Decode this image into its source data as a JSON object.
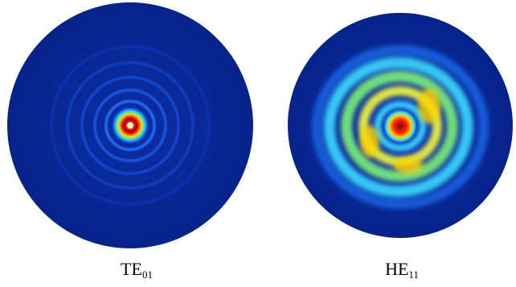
{
  "panels": [
    {
      "mode": "TE",
      "subscript": "01",
      "colors": {
        "background": "#ffffff",
        "field": "#0a2a9c",
        "ring": "#1446cc",
        "peak": "#8a0000",
        "hot": "#ff2a00",
        "warm": "#ffd400",
        "mid": "#38e8d2"
      }
    },
    {
      "mode": "HE",
      "subscript": "11",
      "colors": {
        "background": "#ffffff",
        "field": "#0a2a9c",
        "ring": "#1e6cf0",
        "peak": "#8a0000",
        "hot": "#ff2a00",
        "warm": "#e8f040",
        "mid": "#3ad8ff"
      }
    }
  ]
}
